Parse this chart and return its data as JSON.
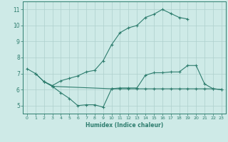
{
  "line1_x": [
    0,
    1,
    2,
    3,
    4,
    5,
    6,
    7,
    8,
    9,
    10,
    11,
    12,
    13,
    14,
    15,
    16,
    17,
    18,
    19
  ],
  "line1_y": [
    7.3,
    7.0,
    6.5,
    6.25,
    6.55,
    6.7,
    6.85,
    7.1,
    7.2,
    7.8,
    8.8,
    9.55,
    9.85,
    10.0,
    10.5,
    10.7,
    11.0,
    10.75,
    10.5,
    10.4
  ],
  "line2_x": [
    1,
    2,
    3,
    4,
    5,
    6,
    7,
    8,
    9,
    10,
    11,
    12,
    13,
    14,
    15,
    16,
    17,
    18,
    19,
    20,
    21,
    22,
    23
  ],
  "line2_y": [
    7.0,
    6.5,
    6.2,
    5.8,
    5.45,
    5.0,
    5.05,
    5.05,
    4.9,
    6.05,
    6.1,
    6.1,
    6.1,
    6.9,
    7.05,
    7.05,
    7.1,
    7.1,
    7.5,
    7.5,
    6.35,
    6.05,
    6.0
  ],
  "line3_x": [
    2,
    3,
    10,
    11,
    12,
    13,
    14,
    15,
    16,
    17,
    18,
    19,
    20,
    21,
    22,
    23
  ],
  "line3_y": [
    6.5,
    6.2,
    6.05,
    6.05,
    6.05,
    6.05,
    6.05,
    6.05,
    6.05,
    6.05,
    6.05,
    6.05,
    6.05,
    6.05,
    6.05,
    6.0
  ],
  "color": "#2e7d6e",
  "bg_color": "#ceeae7",
  "grid_color": "#aed0cc",
  "xlabel": "Humidex (Indice chaleur)",
  "xlim": [
    -0.5,
    23.5
  ],
  "ylim": [
    4.5,
    11.5
  ],
  "yticks": [
    5,
    6,
    7,
    8,
    9,
    10,
    11
  ],
  "xticks": [
    0,
    1,
    2,
    3,
    4,
    5,
    6,
    7,
    8,
    9,
    10,
    11,
    12,
    13,
    14,
    15,
    16,
    17,
    18,
    19,
    20,
    21,
    22,
    23
  ]
}
